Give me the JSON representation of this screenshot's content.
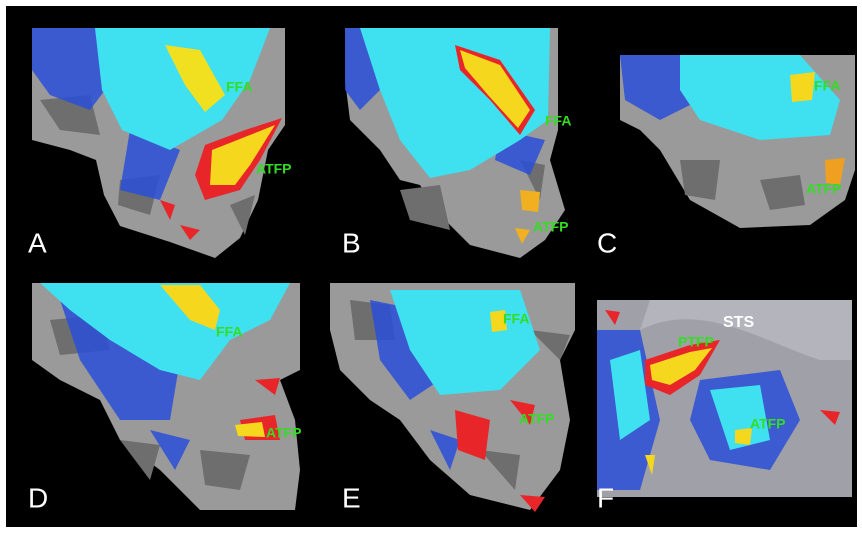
{
  "panels": [
    {
      "letter": "A",
      "labels": [
        "FFA",
        "ATFP"
      ]
    },
    {
      "letter": "B",
      "labels": [
        "FFA",
        "ATFP"
      ]
    },
    {
      "letter": "C",
      "labels": [
        "FFA",
        "ATFP"
      ]
    },
    {
      "letter": "D",
      "labels": [
        "FFA",
        "ATFP"
      ]
    },
    {
      "letter": "E",
      "labels": [
        "FFA",
        "ATFP"
      ]
    },
    {
      "letter": "F",
      "labels": [
        "STS",
        "PTFP",
        "ATFP"
      ]
    }
  ]
}
